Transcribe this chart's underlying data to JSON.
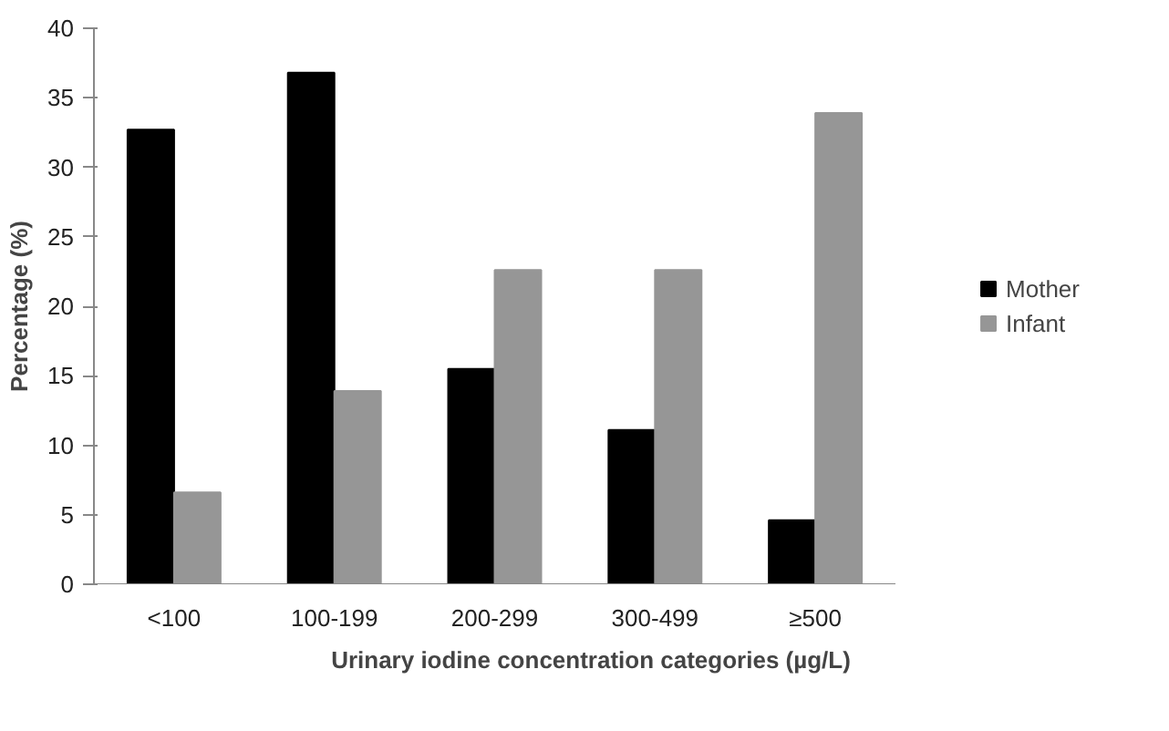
{
  "chart_data": {
    "type": "bar",
    "xlabel": "Urinary iodine concentration categories (µg/L)",
    "ylabel": "Percentage (%)",
    "categories": [
      "<100",
      "100-199",
      "200-299",
      "300-499",
      "≥500"
    ],
    "series": [
      {
        "name": "Mother",
        "color": "#000000",
        "values": [
          32.7,
          36.8,
          15.5,
          11.1,
          4.6
        ]
      },
      {
        "name": "Infant",
        "color": "#969696",
        "values": [
          6.6,
          13.9,
          22.6,
          22.6,
          33.9
        ]
      }
    ],
    "ylim": [
      0,
      40
    ],
    "yticks": [
      0,
      5,
      10,
      15,
      20,
      25,
      30,
      35,
      40
    ],
    "grid": false,
    "legend": "right"
  }
}
